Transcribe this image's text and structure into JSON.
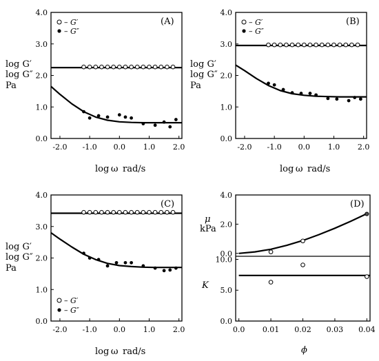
{
  "chart_data": [
    {
      "panel": "(A)",
      "type": "scatter",
      "xlabel": "log ω rad/s",
      "ylabel": [
        "log G′",
        "log G″",
        "Pa"
      ],
      "xlim": [
        -2.3,
        2.1
      ],
      "ylim": [
        0,
        4.0
      ],
      "xticks": [
        "-2.0",
        "-1.0",
        "0.0",
        "1.0",
        "2.0"
      ],
      "yticks": [
        "0.0",
        "1.0",
        "2.0",
        "3.0",
        "4.0"
      ],
      "legend": [
        {
          "marker": "open",
          "label": "– G′"
        },
        {
          "marker": "filled",
          "label": "– G″"
        }
      ],
      "legend_position": "top-left",
      "series": [
        {
          "name": "G′",
          "marker": "open",
          "x": [
            -1.2,
            -1.0,
            -0.8,
            -0.6,
            -0.4,
            -0.2,
            0.0,
            0.2,
            0.4,
            0.6,
            0.8,
            1.0,
            1.2,
            1.4,
            1.6,
            1.8
          ],
          "y": [
            2.27,
            2.27,
            2.27,
            2.27,
            2.27,
            2.27,
            2.27,
            2.27,
            2.27,
            2.27,
            2.27,
            2.27,
            2.27,
            2.27,
            2.27,
            2.27
          ]
        },
        {
          "name": "G″",
          "marker": "filled",
          "x": [
            -1.2,
            -1.0,
            -0.7,
            -0.4,
            0.0,
            0.2,
            0.4,
            0.8,
            1.2,
            1.5,
            1.7,
            1.9
          ],
          "y": [
            0.85,
            0.65,
            0.72,
            0.68,
            0.75,
            0.68,
            0.65,
            0.47,
            0.42,
            0.52,
            0.37,
            0.6
          ]
        },
        {
          "name": "G′ fit",
          "type": "line",
          "x": [
            -2.3,
            2.1
          ],
          "y": [
            2.25,
            2.25
          ]
        },
        {
          "name": "G″ fit",
          "type": "line",
          "x": [
            -2.3,
            -2.0,
            -1.6,
            -1.2,
            -0.8,
            -0.4,
            0.0,
            0.4,
            0.8,
            1.2,
            1.6,
            2.1
          ],
          "y": [
            1.65,
            1.4,
            1.1,
            0.85,
            0.68,
            0.58,
            0.53,
            0.51,
            0.5,
            0.5,
            0.5,
            0.5
          ]
        }
      ]
    },
    {
      "panel": "(B)",
      "type": "scatter",
      "xlabel": "log ω rad/s",
      "ylabel": [
        "log G′",
        "log G″",
        "Pa"
      ],
      "xlim": [
        -2.3,
        2.1
      ],
      "ylim": [
        0,
        4.0
      ],
      "xticks": [
        "-2.0",
        "-1.0",
        "0.0",
        "1.0",
        "2.0"
      ],
      "yticks": [
        "0.0",
        "1.0",
        "2.0",
        "3.0",
        "4.0"
      ],
      "legend": [
        {
          "marker": "open",
          "label": "– G′"
        },
        {
          "marker": "filled",
          "label": "– G″"
        }
      ],
      "legend_position": "top-left",
      "series": [
        {
          "name": "G′",
          "marker": "open",
          "x": [
            -1.2,
            -1.0,
            -0.8,
            -0.6,
            -0.4,
            -0.2,
            0.0,
            0.2,
            0.4,
            0.6,
            0.8,
            1.0,
            1.2,
            1.4,
            1.6,
            1.8
          ],
          "y": [
            2.97,
            2.97,
            2.97,
            2.97,
            2.97,
            2.97,
            2.97,
            2.97,
            2.97,
            2.97,
            2.97,
            2.97,
            2.97,
            2.97,
            2.97,
            2.97
          ]
        },
        {
          "name": "G″",
          "marker": "filled",
          "x": [
            -1.2,
            -1.0,
            -0.7,
            -0.4,
            -0.1,
            0.2,
            0.4,
            0.8,
            1.1,
            1.5,
            1.7,
            1.9
          ],
          "y": [
            1.75,
            1.7,
            1.55,
            1.45,
            1.43,
            1.43,
            1.38,
            1.27,
            1.25,
            1.2,
            1.3,
            1.25
          ]
        },
        {
          "name": "G′ fit",
          "type": "line",
          "x": [
            -2.3,
            2.1
          ],
          "y": [
            2.95,
            2.95
          ]
        },
        {
          "name": "G″ fit",
          "type": "line",
          "x": [
            -2.3,
            -2.0,
            -1.6,
            -1.2,
            -0.8,
            -0.4,
            0.0,
            0.4,
            0.8,
            1.2,
            1.6,
            2.1
          ],
          "y": [
            2.33,
            2.15,
            1.9,
            1.68,
            1.52,
            1.42,
            1.37,
            1.34,
            1.33,
            1.32,
            1.32,
            1.32
          ]
        }
      ]
    },
    {
      "panel": "(C)",
      "type": "scatter",
      "xlabel": "log ω rad/s",
      "ylabel": [
        "log G′",
        "log G″",
        "Pa"
      ],
      "xlim": [
        -2.3,
        2.1
      ],
      "ylim": [
        0,
        4.0
      ],
      "xticks": [
        "-2.0",
        "-1.0",
        "0.0",
        "1.0",
        "2.0"
      ],
      "yticks": [
        "0.0",
        "1.0",
        "2.0",
        "3.0",
        "4.0"
      ],
      "legend": [
        {
          "marker": "open",
          "label": "– G′"
        },
        {
          "marker": "filled",
          "label": "– G″"
        }
      ],
      "legend_position": "bottom-left",
      "series": [
        {
          "name": "G′",
          "marker": "open",
          "x": [
            -1.2,
            -1.0,
            -0.8,
            -0.6,
            -0.4,
            -0.2,
            0.0,
            0.2,
            0.4,
            0.6,
            0.8,
            1.0,
            1.2,
            1.4,
            1.6,
            1.8
          ],
          "y": [
            3.45,
            3.45,
            3.45,
            3.45,
            3.45,
            3.45,
            3.45,
            3.45,
            3.45,
            3.45,
            3.45,
            3.45,
            3.45,
            3.45,
            3.45,
            3.45
          ]
        },
        {
          "name": "G″",
          "marker": "filled",
          "x": [
            -1.2,
            -1.0,
            -0.7,
            -0.4,
            -0.1,
            0.2,
            0.4,
            0.8,
            1.2,
            1.5,
            1.7,
            1.9
          ],
          "y": [
            2.15,
            2.0,
            1.95,
            1.75,
            1.85,
            1.85,
            1.85,
            1.75,
            1.68,
            1.6,
            1.62,
            1.68
          ]
        },
        {
          "name": "G′ fit",
          "type": "line",
          "x": [
            -2.3,
            2.1
          ],
          "y": [
            3.42,
            3.42
          ]
        },
        {
          "name": "G″ fit",
          "type": "line",
          "x": [
            -2.3,
            -2.0,
            -1.6,
            -1.2,
            -0.8,
            -0.4,
            0.0,
            0.4,
            0.8,
            1.2,
            1.6,
            2.1
          ],
          "y": [
            2.8,
            2.6,
            2.35,
            2.12,
            1.95,
            1.83,
            1.76,
            1.73,
            1.71,
            1.7,
            1.7,
            1.7
          ]
        }
      ]
    },
    {
      "panel": "(D)",
      "type": "scatter",
      "xlabel": "ϕ",
      "xlim": [
        -0.001,
        0.041
      ],
      "xticks": [
        "0.0",
        "0.01",
        "0.02",
        "0.03",
        "0.04"
      ],
      "subplots": [
        {
          "ylabel": [
            "μ",
            "kPa"
          ],
          "ylim": [
            -0.2,
            4.0
          ],
          "yticks": [
            "0.0",
            "2.0",
            "4.0"
          ],
          "points": [
            {
              "x": 0.01,
              "y": 0.1,
              "marker": "open"
            },
            {
              "x": 0.02,
              "y": 0.85,
              "marker": "open"
            },
            {
              "x": 0.04,
              "y": 2.7,
              "marker": "filled"
            }
          ],
          "curve": {
            "x": [
              0.0,
              0.005,
              0.01,
              0.015,
              0.02,
              0.025,
              0.03,
              0.035,
              0.04
            ],
            "y": [
              0.0,
              0.1,
              0.28,
              0.55,
              0.88,
              1.28,
              1.72,
              2.2,
              2.72
            ]
          }
        },
        {
          "ylabel": [
            "K"
          ],
          "ylim": [
            0,
            10.5
          ],
          "yticks": [
            "0.0",
            "5.0",
            "10.0"
          ],
          "points": [
            {
              "x": 0.01,
              "y": 6.3,
              "marker": "open"
            },
            {
              "x": 0.02,
              "y": 9.1,
              "marker": "open"
            },
            {
              "x": 0.04,
              "y": 7.2,
              "marker": "open"
            }
          ],
          "curve": {
            "x": [
              0.0,
              0.041
            ],
            "y": [
              7.4,
              7.4
            ]
          }
        }
      ]
    }
  ]
}
